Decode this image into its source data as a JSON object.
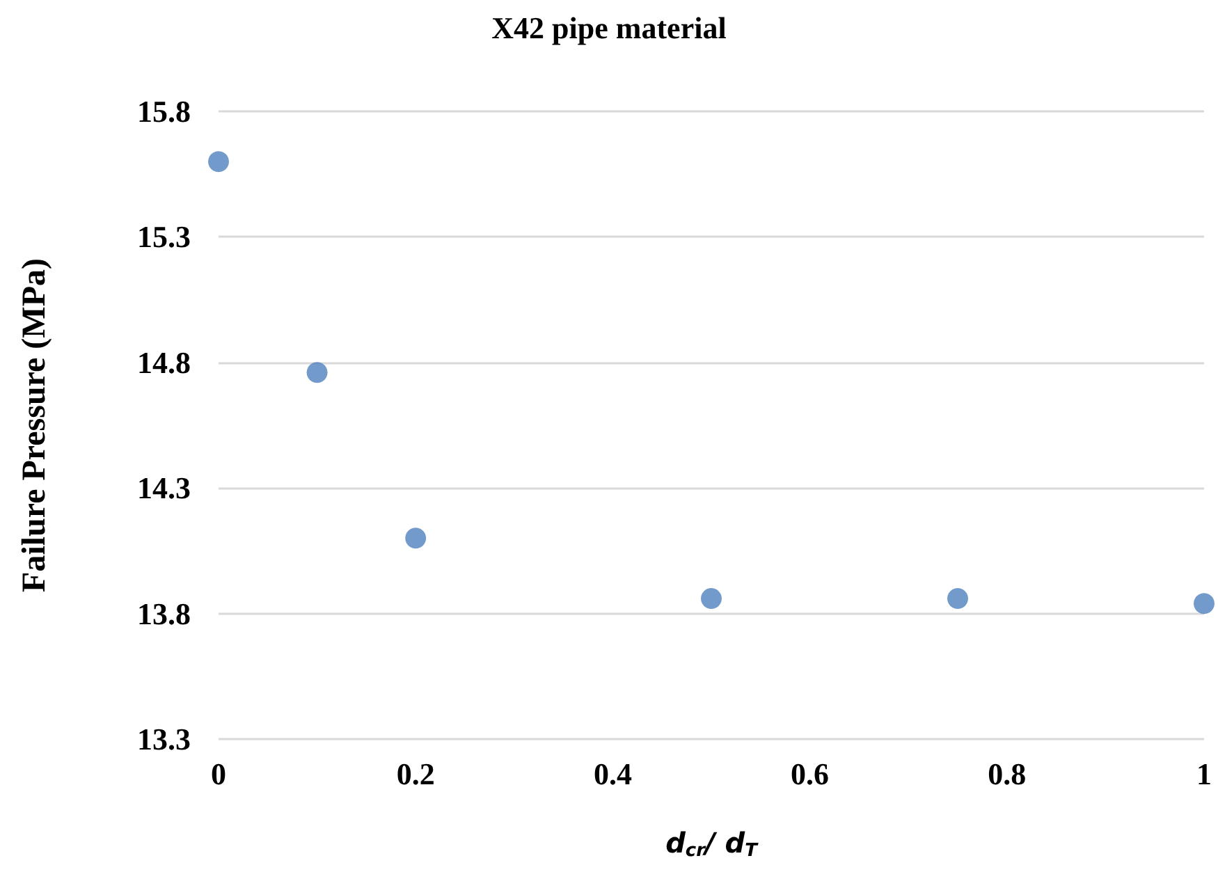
{
  "chart_data": {
    "type": "scatter",
    "title": "X42 pipe material",
    "xlabel": "d$_{cr}$/ d$_{T}$",
    "ylabel": "Failure Pressure (MPa)",
    "x": [
      0,
      0.1,
      0.2,
      0.5,
      0.75,
      1
    ],
    "values": [
      15.6,
      14.76,
      14.1,
      13.86,
      13.86,
      13.84
    ],
    "color": "#4f81bd",
    "marker": "circle",
    "xlim": [
      0,
      1
    ],
    "xticks": [
      0,
      0.2,
      0.4,
      0.6,
      0.8,
      1
    ],
    "ylim": [
      13.3,
      15.8
    ],
    "yticks": [
      13.3,
      13.8,
      14.3,
      14.8,
      15.3,
      15.8
    ],
    "grid": "y"
  }
}
